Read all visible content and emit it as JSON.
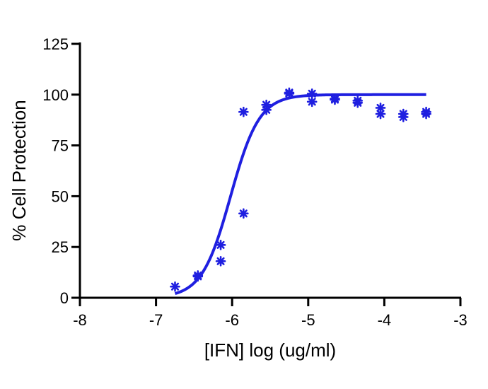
{
  "chart_data": {
    "type": "scatter",
    "title": "",
    "xlabel": "[IFN] log (ug/ml)",
    "ylabel": "% Cell Protection",
    "xlim": [
      -8,
      -3
    ],
    "ylim": [
      0,
      125
    ],
    "x_ticks": [
      -8,
      -7,
      -6,
      -5,
      -4,
      -3
    ],
    "y_ticks": [
      0,
      25,
      50,
      75,
      100,
      125
    ],
    "grid": false,
    "legend": "none",
    "color": "#1f1fe0",
    "series": [
      {
        "values": [
          {
            "x": -6.75,
            "y": 5.5
          },
          {
            "x": -6.45,
            "y": 10.5
          },
          {
            "x": -6.45,
            "y": 11
          },
          {
            "x": -6.15,
            "y": 26
          },
          {
            "x": -6.15,
            "y": 18
          },
          {
            "x": -5.85,
            "y": 91.5
          },
          {
            "x": -5.85,
            "y": 41.5
          },
          {
            "x": -5.55,
            "y": 95
          },
          {
            "x": -5.55,
            "y": 92.5
          },
          {
            "x": -5.25,
            "y": 100.5
          },
          {
            "x": -5.25,
            "y": 101
          },
          {
            "x": -4.95,
            "y": 100.5
          },
          {
            "x": -4.95,
            "y": 96.5
          },
          {
            "x": -4.65,
            "y": 97.5
          },
          {
            "x": -4.65,
            "y": 98
          },
          {
            "x": -4.35,
            "y": 97
          },
          {
            "x": -4.35,
            "y": 96
          },
          {
            "x": -4.05,
            "y": 93.5
          },
          {
            "x": -4.05,
            "y": 90.5
          },
          {
            "x": -3.75,
            "y": 90.5
          },
          {
            "x": -3.75,
            "y": 89
          },
          {
            "x": -3.45,
            "y": 91.5
          },
          {
            "x": -3.45,
            "y": 90.5
          }
        ]
      }
    ],
    "fit": {
      "type": "sigmoidal dose-response",
      "bottom": 0,
      "top": 100,
      "log_ec50": -6.02,
      "hill_slope": 2.3,
      "x_start": -6.75,
      "x_end": -3.45
    }
  }
}
